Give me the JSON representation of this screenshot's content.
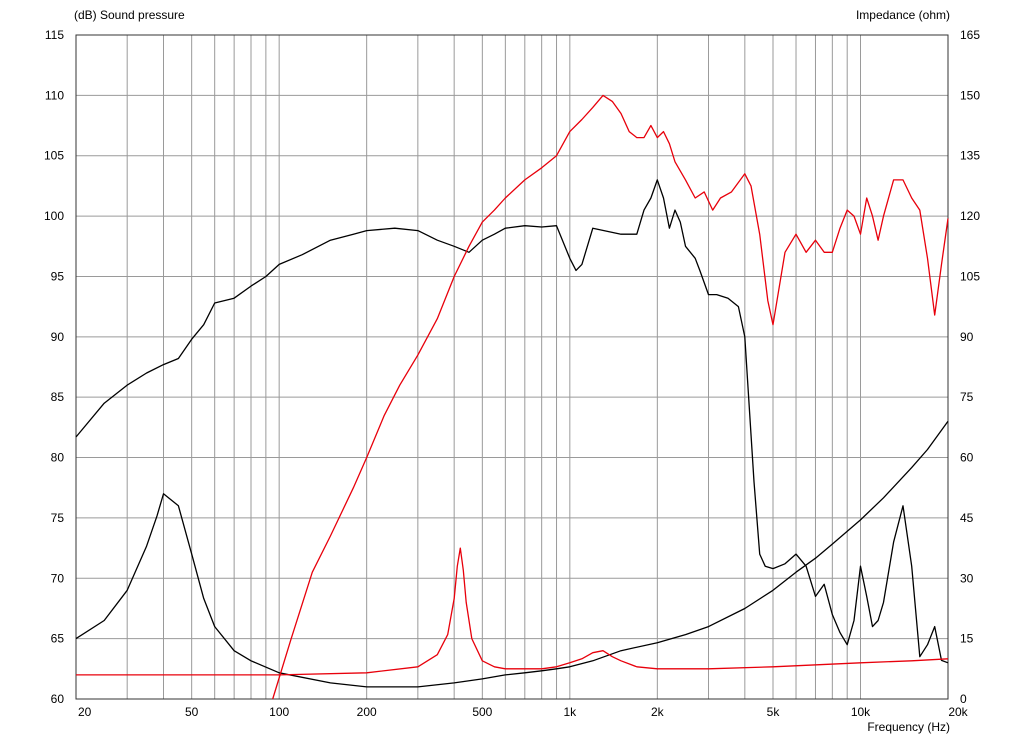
{
  "chart_data": {
    "type": "line",
    "y_left_label": "(dB)  Sound pressure",
    "y_right_label": "Impedance  (ohm)",
    "x_label": "Frequency  (Hz)",
    "x_scale": "log",
    "x_range": [
      20,
      20000
    ],
    "y_left_range": [
      60,
      115
    ],
    "y_right_range": [
      0,
      165
    ],
    "grid": true,
    "x_tick_labels": [
      {
        "value": 20,
        "label": "20"
      },
      {
        "value": 50,
        "label": "50"
      },
      {
        "value": 100,
        "label": "100"
      },
      {
        "value": 200,
        "label": "200"
      },
      {
        "value": 500,
        "label": "500"
      },
      {
        "value": 1000,
        "label": "1k"
      },
      {
        "value": 2000,
        "label": "2k"
      },
      {
        "value": 5000,
        "label": "5k"
      },
      {
        "value": 10000,
        "label": "10k"
      },
      {
        "value": 20000,
        "label": "20k"
      }
    ],
    "y_left_ticks": [
      60,
      65,
      70,
      75,
      80,
      85,
      90,
      95,
      100,
      105,
      110,
      115
    ],
    "y_right_ticks": [
      0,
      15,
      30,
      45,
      60,
      75,
      90,
      105,
      120,
      135,
      150,
      165
    ],
    "series": [
      {
        "axis": "left",
        "color": "#000000",
        "x": [
          20,
          25,
          30,
          35,
          40,
          45,
          50,
          55,
          60,
          70,
          80,
          90,
          100,
          120,
          150,
          180,
          200,
          250,
          300,
          350,
          400,
          450,
          500,
          550,
          600,
          700,
          800,
          900,
          1000,
          1050,
          1100,
          1200,
          1500,
          1700,
          1800,
          1900,
          2000,
          2100,
          2200,
          2300,
          2400,
          2500,
          2700,
          2800,
          3000,
          3200,
          3500,
          3800,
          4000,
          4300,
          4500,
          4700,
          5000,
          5500,
          6000,
          6500,
          7000,
          7500,
          8000,
          8500,
          9000,
          9500,
          10000,
          10500,
          11000,
          11500,
          12000,
          13000,
          14000,
          15000,
          16000,
          17000,
          18000,
          19000,
          20000
        ],
        "values": [
          81.7,
          84.5,
          86.0,
          87.0,
          87.7,
          88.2,
          89.8,
          91.0,
          92.8,
          93.2,
          94.2,
          95.0,
          96.0,
          96.8,
          98.0,
          98.5,
          98.8,
          99.0,
          98.8,
          98.0,
          97.5,
          97.0,
          98.0,
          98.5,
          99.0,
          99.2,
          99.1,
          99.2,
          96.5,
          95.5,
          96.0,
          99.0,
          98.5,
          98.5,
          100.5,
          101.5,
          103.0,
          101.5,
          99.0,
          100.5,
          99.5,
          97.5,
          96.5,
          95.5,
          93.5,
          93.5,
          93.2,
          92.5,
          90.0,
          78.0,
          72.0,
          71.0,
          70.8,
          71.2,
          72.0,
          71.0,
          68.5,
          69.5,
          67.0,
          65.5,
          64.5,
          66.5,
          71.0,
          68.5,
          66.0,
          66.5,
          68.0,
          73.0,
          76.0,
          71.0,
          63.5,
          64.5,
          66.0,
          63.2,
          63.0
        ]
      },
      {
        "axis": "right",
        "color": "#000000",
        "x": [
          20,
          25,
          30,
          35,
          38,
          40,
          45,
          50,
          55,
          60,
          70,
          80,
          100,
          150,
          200,
          300,
          400,
          500,
          600,
          700,
          800,
          900,
          1000,
          1200,
          1500,
          2000,
          2500,
          3000,
          4000,
          5000,
          6000,
          7000,
          8000,
          10000,
          12000,
          15000,
          17000,
          20000
        ],
        "values": [
          15.0,
          19.5,
          27.0,
          38.0,
          45.5,
          51.0,
          48.0,
          36.0,
          25.0,
          18.0,
          12.0,
          9.5,
          6.5,
          4.0,
          3.0,
          3.0,
          4.0,
          5.0,
          6.0,
          6.5,
          7.0,
          7.5,
          8.0,
          9.5,
          12.0,
          14.0,
          16.0,
          18.0,
          22.5,
          27.0,
          31.5,
          35.0,
          38.5,
          44.5,
          50.0,
          57.5,
          62.0,
          69.0
        ]
      },
      {
        "axis": "left",
        "color": "#e8000b",
        "x": [
          95,
          110,
          130,
          150,
          180,
          200,
          230,
          260,
          300,
          350,
          400,
          450,
          500,
          550,
          600,
          700,
          800,
          900,
          1000,
          1100,
          1200,
          1300,
          1400,
          1500,
          1600,
          1700,
          1800,
          1900,
          2000,
          2100,
          2200,
          2300,
          2500,
          2700,
          2900,
          3100,
          3300,
          3600,
          4000,
          4200,
          4500,
          4800,
          5000,
          5500,
          6000,
          6500,
          7000,
          7500,
          8000,
          8500,
          9000,
          9500,
          10000,
          10500,
          11000,
          11500,
          12000,
          13000,
          14000,
          15000,
          16000,
          17000,
          18000,
          19000,
          20000
        ],
        "values": [
          60.0,
          65.0,
          70.5,
          73.5,
          77.5,
          80.0,
          83.5,
          86.0,
          88.5,
          91.5,
          95.0,
          97.5,
          99.5,
          100.5,
          101.5,
          103.0,
          104.0,
          105.0,
          107.0,
          108.0,
          109.0,
          110.0,
          109.5,
          108.5,
          107.0,
          106.5,
          106.5,
          107.5,
          106.5,
          107.0,
          106.0,
          104.5,
          103.0,
          101.5,
          102.0,
          100.5,
          101.5,
          102.0,
          103.5,
          102.5,
          98.5,
          93.0,
          91.0,
          97.0,
          98.5,
          97.0,
          98.0,
          97.0,
          97.0,
          99.0,
          100.5,
          100.0,
          98.5,
          101.5,
          100.0,
          98.0,
          100.0,
          103.0,
          103.0,
          101.5,
          100.5,
          96.5,
          91.8,
          96.0,
          99.8
        ]
      },
      {
        "axis": "right",
        "color": "#e8000b",
        "x": [
          20,
          50,
          100,
          200,
          300,
          350,
          380,
          400,
          410,
          420,
          430,
          440,
          460,
          500,
          550,
          600,
          700,
          800,
          900,
          1000,
          1100,
          1200,
          1300,
          1400,
          1500,
          1700,
          2000,
          3000,
          5000,
          10000,
          15000,
          20000
        ],
        "values": [
          6.0,
          6.0,
          6.0,
          6.5,
          8.0,
          11.0,
          16.0,
          25.0,
          33.0,
          37.5,
          32.0,
          24.0,
          15.0,
          9.5,
          8.0,
          7.5,
          7.5,
          7.5,
          8.0,
          9.0,
          10.0,
          11.5,
          12.0,
          10.5,
          9.5,
          8.0,
          7.5,
          7.5,
          8.0,
          9.0,
          9.5,
          10.0
        ]
      }
    ]
  }
}
